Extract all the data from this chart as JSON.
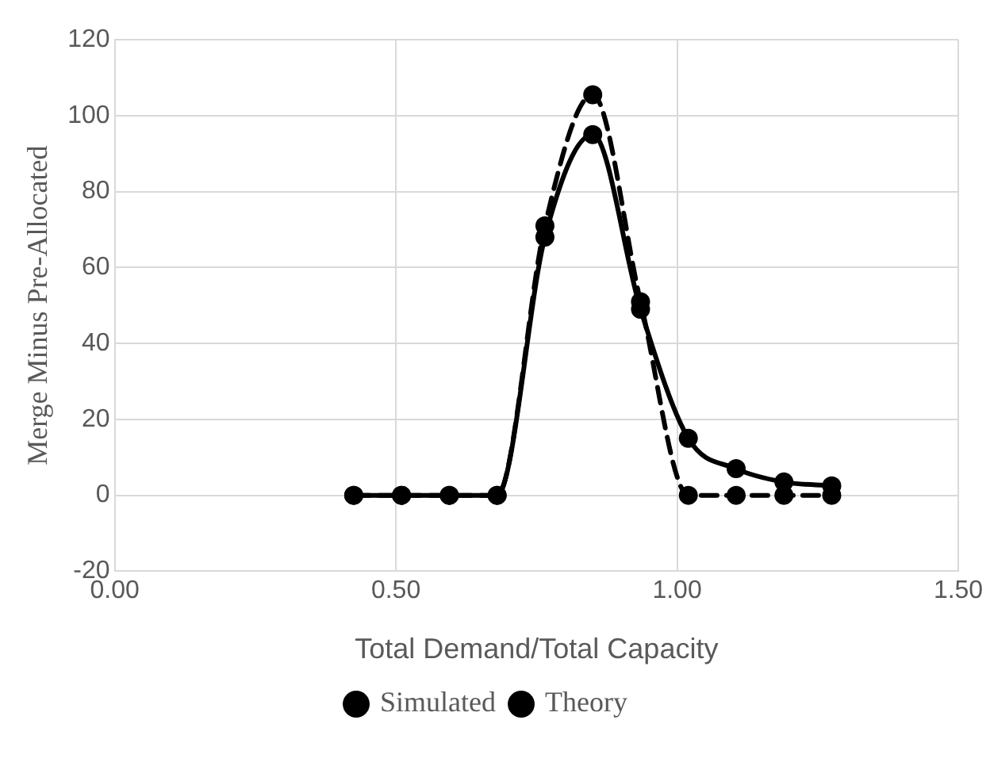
{
  "chart_data": {
    "type": "line",
    "xlabel": "Total Demand/Total Capacity",
    "ylabel": "Merge Minus Pre-Allocated",
    "xlim": [
      0,
      1.5
    ],
    "xticks": [
      {
        "value": 0,
        "label": "0.00"
      },
      {
        "value": 0.5,
        "label": "0.50"
      },
      {
        "value": 1,
        "label": "1.00"
      },
      {
        "value": 1.5,
        "label": "1.50"
      }
    ],
    "ylim": [
      -20,
      120
    ],
    "yticks": [
      -20,
      0,
      20,
      40,
      60,
      80,
      100,
      120
    ],
    "x": [
      0.425,
      0.51,
      0.595,
      0.68,
      0.765,
      0.85,
      0.935,
      1.02,
      1.105,
      1.19,
      1.275
    ],
    "series": [
      {
        "name": "Simulated",
        "color": "#000000",
        "line_style": "solid",
        "values": [
          0,
          0,
          0,
          0,
          68,
          95,
          49,
          15,
          7,
          3.5,
          2.5
        ]
      },
      {
        "name": "Theory",
        "color": "#000000",
        "line_style": "dashed",
        "values": [
          0,
          0,
          0,
          0,
          71,
          105.5,
          51,
          0,
          0,
          0,
          0
        ]
      }
    ],
    "marker": "circle",
    "grid": true,
    "legend": "bottom"
  }
}
